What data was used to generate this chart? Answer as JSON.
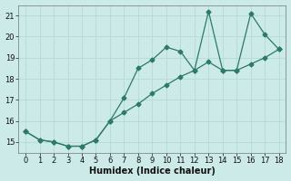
{
  "xlabel": "Humidex (Indice chaleur)",
  "ylabel": "",
  "background_color": "#cceae7",
  "line_color": "#2d7a6a",
  "grid_color": "#b8ddd8",
  "x_line1": [
    0,
    1,
    2,
    3,
    4,
    5,
    6,
    7,
    8,
    9,
    10,
    11,
    12,
    13,
    14,
    15,
    16,
    17,
    18
  ],
  "y_line1": [
    15.5,
    15.1,
    15.0,
    14.8,
    14.8,
    15.1,
    16.0,
    17.1,
    18.5,
    18.9,
    19.5,
    19.3,
    18.4,
    21.2,
    18.4,
    18.4,
    21.1,
    20.1,
    19.4
  ],
  "x_line2": [
    0,
    1,
    2,
    3,
    4,
    5,
    6,
    7,
    8,
    9,
    10,
    11,
    12,
    13,
    14,
    15,
    16,
    17,
    18
  ],
  "y_line2": [
    15.5,
    15.1,
    15.0,
    14.8,
    14.8,
    15.1,
    16.0,
    16.4,
    16.8,
    17.3,
    17.7,
    18.1,
    18.4,
    18.8,
    18.4,
    18.4,
    18.7,
    19.0,
    19.4
  ],
  "xlim": [
    -0.5,
    18.5
  ],
  "ylim": [
    14.5,
    21.5
  ],
  "xticks": [
    0,
    1,
    2,
    3,
    4,
    5,
    6,
    7,
    8,
    9,
    10,
    11,
    12,
    13,
    14,
    15,
    16,
    17,
    18
  ],
  "yticks": [
    15,
    16,
    17,
    18,
    19,
    20,
    21
  ],
  "xlabel_fontsize": 7,
  "tick_fontsize": 6
}
